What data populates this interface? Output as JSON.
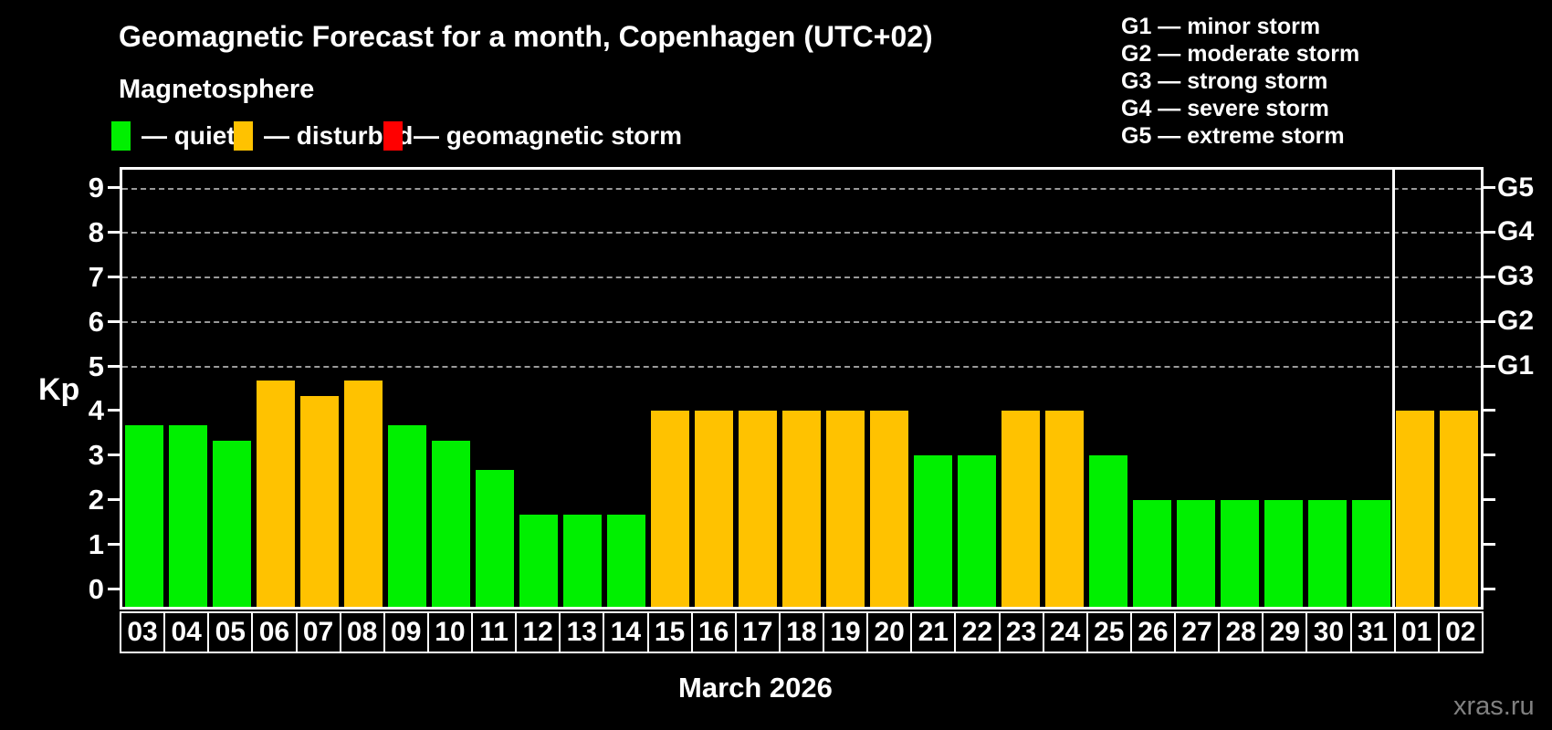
{
  "header": {
    "title": "Geomagnetic Forecast for a month, Copenhagen (UTC+02)",
    "subtitle": "Magnetosphere"
  },
  "legend": {
    "items": [
      {
        "name": "quiet",
        "label": "— quiet",
        "color": "#00F000"
      },
      {
        "name": "disturbed",
        "label": "— disturbed",
        "color": "#FFC200"
      },
      {
        "name": "storm",
        "label": "— geomagnetic storm",
        "color": "#FF0000"
      }
    ]
  },
  "storm_scale": [
    "G1 — minor storm",
    "G2 — moderate storm",
    "G3 — strong storm",
    "G4 — severe storm",
    "G5 — extreme storm"
  ],
  "axis": {
    "kp_label": "Kp"
  },
  "footer": {
    "month_label": "March 2026",
    "watermark": "xras.ru"
  },
  "chart_data": {
    "type": "bar",
    "title": "Geomagnetic Forecast for a month, Copenhagen (UTC+02)",
    "xlabel": "March 2026",
    "ylabel": "Kp",
    "ylim": [
      -0.4,
      9.4
    ],
    "yticks": [
      0,
      1,
      2,
      3,
      4,
      5,
      6,
      7,
      8,
      9
    ],
    "gridlines_at": [
      5,
      6,
      7,
      8,
      9
    ],
    "grid": "dashed, only at storm levels G1-G5",
    "legend_position": "top",
    "right_axis_labels": [
      {
        "label": "G1",
        "kp": 5
      },
      {
        "label": "G2",
        "kp": 6
      },
      {
        "label": "G3",
        "kp": 7
      },
      {
        "label": "G4",
        "kp": 8
      },
      {
        "label": "G5",
        "kp": 9
      }
    ],
    "categories": [
      "03",
      "04",
      "05",
      "06",
      "07",
      "08",
      "09",
      "10",
      "11",
      "12",
      "13",
      "14",
      "15",
      "16",
      "17",
      "18",
      "19",
      "20",
      "21",
      "22",
      "23",
      "24",
      "25",
      "26",
      "27",
      "28",
      "29",
      "30",
      "31",
      "01",
      "02"
    ],
    "values": [
      3.67,
      3.67,
      3.33,
      4.67,
      4.33,
      4.67,
      3.67,
      3.33,
      2.67,
      1.67,
      1.67,
      1.67,
      4,
      4,
      4,
      4,
      4,
      4,
      3,
      3,
      4,
      4,
      3,
      2,
      2,
      2,
      2,
      2,
      2,
      4,
      4
    ],
    "statuses": [
      "quiet",
      "quiet",
      "quiet",
      "disturbed",
      "disturbed",
      "disturbed",
      "quiet",
      "quiet",
      "quiet",
      "quiet",
      "quiet",
      "quiet",
      "disturbed",
      "disturbed",
      "disturbed",
      "disturbed",
      "disturbed",
      "disturbed",
      "quiet",
      "quiet",
      "disturbed",
      "disturbed",
      "quiet",
      "quiet",
      "quiet",
      "quiet",
      "quiet",
      "quiet",
      "quiet",
      "disturbed",
      "disturbed"
    ],
    "colors": {
      "quiet": "#00F000",
      "disturbed": "#FFC200",
      "storm": "#FF0000"
    },
    "month_separator_after_index": 28
  }
}
